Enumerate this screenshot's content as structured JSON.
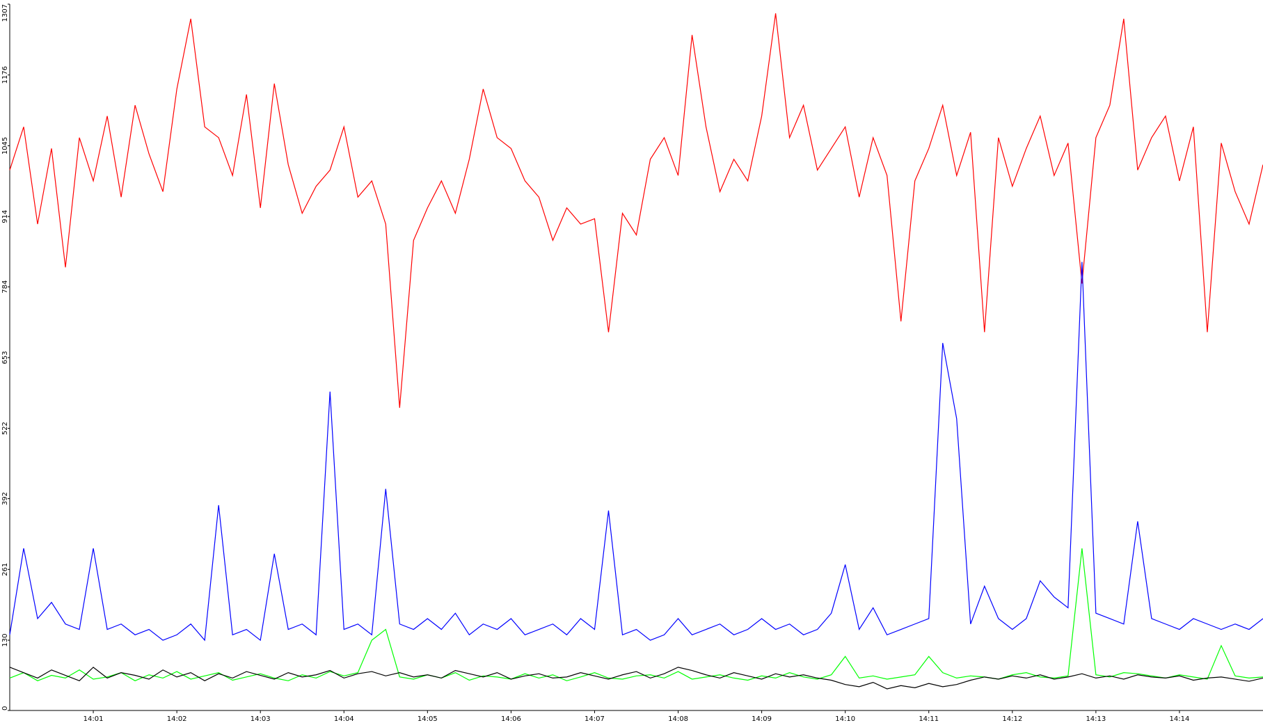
{
  "chart_data": {
    "type": "line",
    "categories": [
      null,
      null,
      null,
      null,
      null,
      null,
      "14:01",
      null,
      null,
      null,
      null,
      null,
      "14:02",
      null,
      null,
      null,
      null,
      null,
      "14:03",
      null,
      null,
      null,
      null,
      null,
      "14:04",
      null,
      null,
      null,
      null,
      null,
      "14:05",
      null,
      null,
      null,
      null,
      null,
      "14:06",
      null,
      null,
      null,
      null,
      null,
      "14:07",
      null,
      null,
      null,
      null,
      null,
      "14:08",
      null,
      null,
      null,
      null,
      null,
      "14:09",
      null,
      null,
      null,
      null,
      null,
      "14:10",
      null,
      null,
      null,
      null,
      null,
      "14:11",
      null,
      null,
      null,
      null,
      null,
      "14:12",
      null,
      null,
      null,
      null,
      null,
      "14:13",
      null,
      null,
      null,
      null,
      null,
      "14:14",
      null,
      null,
      null,
      null,
      null,
      null
    ],
    "series": [
      {
        "color": "#ff0000",
        "values": [
          1000,
          1080,
          900,
          1040,
          820,
          1060,
          980,
          1100,
          950,
          1120,
          1030,
          960,
          1150,
          1280,
          1080,
          1060,
          990,
          1140,
          930,
          1160,
          1010,
          920,
          970,
          1000,
          1080,
          950,
          980,
          900,
          560,
          870,
          930,
          980,
          920,
          1020,
          1150,
          1060,
          1040,
          980,
          950,
          870,
          930,
          900,
          910,
          700,
          920,
          880,
          1020,
          1060,
          990,
          1250,
          1080,
          960,
          1020,
          980,
          1100,
          1290,
          1060,
          1120,
          1000,
          1040,
          1080,
          950,
          1060,
          990,
          720,
          980,
          1040,
          1120,
          990,
          1070,
          700,
          1060,
          970,
          1040,
          1100,
          990,
          1050,
          790,
          1060,
          1120,
          1280,
          1000,
          1060,
          1100,
          980,
          1080,
          700,
          1050,
          960,
          900,
          1010
        ]
      },
      {
        "color": "#0000ff",
        "values": [
          140,
          300,
          170,
          200,
          160,
          150,
          300,
          150,
          160,
          140,
          150,
          130,
          140,
          160,
          130,
          380,
          140,
          150,
          130,
          290,
          150,
          160,
          140,
          590,
          150,
          160,
          140,
          410,
          160,
          150,
          170,
          150,
          180,
          140,
          160,
          150,
          170,
          140,
          150,
          160,
          140,
          170,
          150,
          370,
          140,
          150,
          130,
          140,
          170,
          140,
          150,
          160,
          140,
          150,
          170,
          150,
          160,
          140,
          150,
          180,
          270,
          150,
          190,
          140,
          150,
          160,
          170,
          680,
          540,
          160,
          230,
          170,
          150,
          170,
          240,
          210,
          190,
          830,
          180,
          170,
          160,
          350,
          170,
          160,
          150,
          170,
          160,
          150,
          160,
          150,
          170
        ]
      },
      {
        "color": "#00ff00",
        "values": [
          60,
          70,
          55,
          65,
          60,
          75,
          58,
          62,
          70,
          55,
          66,
          60,
          72,
          58,
          64,
          70,
          56,
          62,
          68,
          60,
          55,
          66,
          60,
          72,
          64,
          70,
          130,
          150,
          62,
          58,
          66,
          60,
          70,
          56,
          64,
          62,
          58,
          68,
          60,
          66,
          55,
          62,
          70,
          60,
          58,
          64,
          66,
          60,
          72,
          58,
          62,
          66,
          60,
          56,
          64,
          60,
          70,
          62,
          58,
          66,
          100,
          60,
          64,
          58,
          62,
          66,
          100,
          70,
          60,
          64,
          62,
          58,
          66,
          70,
          62,
          60,
          64,
          300,
          66,
          62,
          70,
          68,
          64,
          60,
          66,
          62,
          58,
          120,
          64,
          60,
          62
        ]
      },
      {
        "color": "#000000",
        "values": [
          80,
          70,
          60,
          75,
          65,
          55,
          80,
          60,
          70,
          65,
          58,
          75,
          62,
          70,
          55,
          68,
          60,
          72,
          65,
          58,
          70,
          62,
          66,
          74,
          60,
          68,
          72,
          64,
          70,
          62,
          66,
          60,
          74,
          68,
          62,
          70,
          58,
          64,
          68,
          60,
          62,
          70,
          64,
          58,
          66,
          72,
          60,
          68,
          80,
          74,
          66,
          60,
          70,
          64,
          58,
          68,
          62,
          66,
          60,
          56,
          48,
          44,
          52,
          40,
          46,
          42,
          50,
          44,
          48,
          56,
          62,
          58,
          64,
          60,
          66,
          58,
          62,
          68,
          60,
          64,
          58,
          66,
          62,
          60,
          64,
          56,
          60,
          62,
          58,
          54,
          60
        ]
      }
    ],
    "ylim": [
      0,
      1307
    ],
    "yticks": [
      0,
      130,
      261,
      392,
      522,
      653,
      784,
      914,
      1045,
      1176,
      1307
    ],
    "grid": false
  }
}
